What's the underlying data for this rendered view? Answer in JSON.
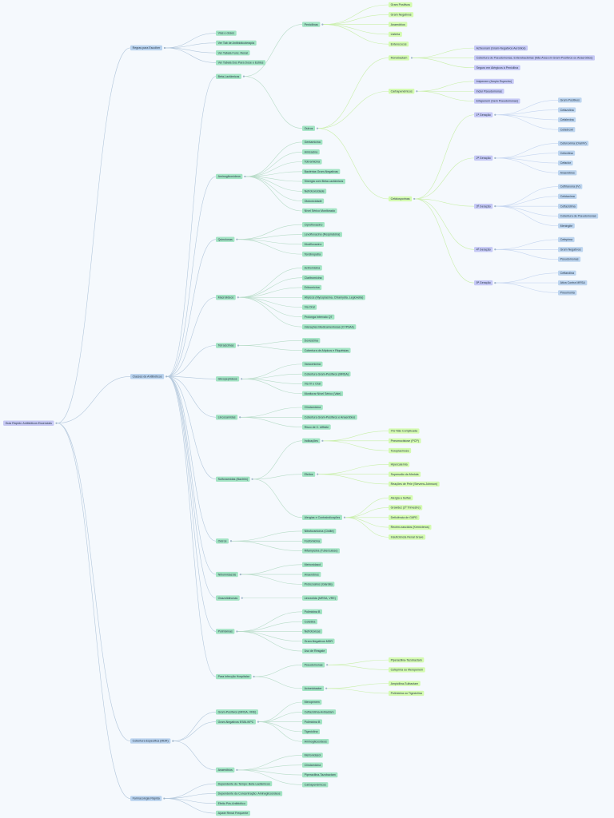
{
  "tree": {
    "label": "Guia Rápido: Antibióticos Essenciais",
    "children": [
      {
        "label": "Regras para Escolher",
        "children": [
          {
            "label": "Vias e doses"
          },
          {
            "label": "Ver Tab de Antibioticoterapia"
          },
          {
            "label": "Ver Tabela Func. Renal"
          },
          {
            "label": "Ver Tabela Dos Para Dose e Estilos"
          }
        ]
      },
      {
        "label": "Classes de Antibióticos",
        "children": [
          {
            "label": "Beta-Lactâmicos",
            "children": [
              {
                "label": "Penicilinas",
                "children": [
                  {
                    "label": "Gram Positivos"
                  },
                  {
                    "label": "Gram Negativos"
                  },
                  {
                    "label": "Anaeróbios"
                  },
                  {
                    "label": "Listeria"
                  },
                  {
                    "label": "Enterococos"
                  }
                ]
              },
              {
                "label": "Outros",
                "children": [
                  {
                    "label": "Monobactam",
                    "children": [
                      {
                        "label": "Aztreonam (Gram-Negativos Aeróbios)"
                      },
                      {
                        "label": "Cobertura de Pseudomonas, Enterobactérias (Não Atua em Gram-Positivos ou Anaeróbios)"
                      },
                      {
                        "label": "Seguro em Alérgicos à Penicilina"
                      }
                    ]
                  },
                  {
                    "label": "Carbapenêmicos",
                    "children": [
                      {
                        "label": "Imipenem (Amplo Espectro)"
                      },
                      {
                        "label": "Inclui Pseudomonas"
                      },
                      {
                        "label": "Ertapenem (Sem Pseudomonas)"
                      }
                    ]
                  },
                  {
                    "label": "Cefalosporinas",
                    "children": [
                      {
                        "label": "1ª Geração",
                        "children": [
                          {
                            "label": "Gram Positivos"
                          },
                          {
                            "label": "Cefazolina"
                          },
                          {
                            "label": "Cefalexina"
                          },
                          {
                            "label": "Cefadroxil"
                          }
                        ]
                      },
                      {
                        "label": "2ª Geração",
                        "children": [
                          {
                            "label": "Cefuroxima (Oral/IV)"
                          },
                          {
                            "label": "Cefoxitina"
                          },
                          {
                            "label": "Cefaclor"
                          },
                          {
                            "label": "Anaeróbios"
                          }
                        ]
                      },
                      {
                        "label": "3ª Geração",
                        "children": [
                          {
                            "label": "Ceftriaxona (IV)"
                          },
                          {
                            "label": "Cefotaxima"
                          },
                          {
                            "label": "Ceftazidima"
                          },
                          {
                            "label": "Cobertura de Pseudomonas"
                          },
                          {
                            "label": "Meningite"
                          }
                        ]
                      },
                      {
                        "label": "4ª Geração",
                        "children": [
                          {
                            "label": "Cefepima"
                          },
                          {
                            "label": "Gram Negativos"
                          },
                          {
                            "label": "Pseudomonas"
                          }
                        ]
                      },
                      {
                        "label": "5ª Geração",
                        "children": [
                          {
                            "label": "Ceftarolina"
                          },
                          {
                            "label": "Ativa Contra MRSA"
                          },
                          {
                            "label": "Pneumonia"
                          }
                        ]
                      }
                    ]
                  }
                ]
              }
            ]
          },
          {
            "label": "Aminoglicosídeos",
            "children": [
              {
                "label": "Gentamicina"
              },
              {
                "label": "Amicacina"
              },
              {
                "label": "Tobramicina"
              },
              {
                "label": "Bactérias Gram-Negativas"
              },
              {
                "label": "Sinergia com Beta-Lactâmicos"
              },
              {
                "label": "Nefrotoxicidade"
              },
              {
                "label": "Ototoxicidade"
              },
              {
                "label": "Nível Sérico Monitorado"
              }
            ]
          },
          {
            "label": "Quinolonas",
            "children": [
              {
                "label": "Ciprofloxacino"
              },
              {
                "label": "Levofloxacino (Respiratória)"
              },
              {
                "label": "Moxifloxacino"
              },
              {
                "label": "Tendinopatia"
              }
            ]
          },
          {
            "label": "Macrolídeos",
            "children": [
              {
                "label": "Azitromicina"
              },
              {
                "label": "Claritromicina"
              },
              {
                "label": "Eritromicina"
              },
              {
                "label": "Atípicos (Mycoplasma, Chlamydia, Legionella)"
              },
              {
                "label": "Via Oral"
              },
              {
                "label": "Prolonga Intervalo QT"
              },
              {
                "label": "Interações Medicamentosas (CYP3A4)"
              }
            ]
          },
          {
            "label": "Tetraciclinas",
            "children": [
              {
                "label": "Doxiciclina"
              },
              {
                "label": "Cobertura de Atípicos e Riquétsias"
              }
            ]
          },
          {
            "label": "Glicopeptídeos",
            "children": [
              {
                "label": "Vancomicina"
              },
              {
                "label": "Cobertura Gram-Positivos (MRSA)"
              },
              {
                "label": "Via IV e Oral"
              },
              {
                "label": "Monitorar Nível Sérico (Vale)"
              }
            ]
          },
          {
            "label": "Lincosamidas",
            "children": [
              {
                "label": "Clindamicina"
              },
              {
                "label": "Cobertura Gram-Positivos e Anaeróbios"
              },
              {
                "label": "Risco de C. difficile"
              }
            ]
          },
          {
            "label": "Sulfonamidas (Bactrim)",
            "children": [
              {
                "label": "Indicações",
                "children": [
                  {
                    "label": "ITU Não Complicada"
                  },
                  {
                    "label": "Pneumocistose (PCP)"
                  },
                  {
                    "label": "Toxoplasmose"
                  }
                ]
              },
              {
                "label": "Efeitos",
                "children": [
                  {
                    "label": "Hipercalemia"
                  },
                  {
                    "label": "Supressão da Medula"
                  },
                  {
                    "label": "Reações de Pele (Stevens-Johnson)"
                  }
                ]
              },
              {
                "label": "Alergias e Contraindicações",
                "children": [
                  {
                    "label": "Alergia a Sulfas"
                  },
                  {
                    "label": "Gravidez (3º Trimestre)"
                  },
                  {
                    "label": "Deficiência de G6PD"
                  },
                  {
                    "label": "Recém-nascidos (Kernicterus)"
                  },
                  {
                    "label": "Insuficiência Renal Grave"
                  }
                ]
              }
            ]
          },
          {
            "label": "Outros",
            "children": [
              {
                "label": "Nitrofurantoína (Cistite)"
              },
              {
                "label": "Fosfomicina"
              },
              {
                "label": "Rifampicina (Tuberculose)"
              }
            ]
          },
          {
            "label": "Nitroimidazóis",
            "children": [
              {
                "label": "Metronidazol"
              },
              {
                "label": "Anaeróbios"
              },
              {
                "label": "Protozoários (Giardia)"
              }
            ]
          },
          {
            "label": "Oxazolidinonas",
            "children": [
              {
                "label": "Linezolida (MRSA, VRE)"
              }
            ]
          },
          {
            "label": "Polimixinas",
            "children": [
              {
                "label": "Polimixina B"
              },
              {
                "label": "Colistina"
              },
              {
                "label": "Nefrotóxicas"
              },
              {
                "label": "Gram-Negativos MDR"
              },
              {
                "label": "Uso de Resgate"
              }
            ]
          },
          {
            "label": "Para Infecção Hospitalar",
            "children": [
              {
                "label": "Pseudomonas",
                "children": [
                  {
                    "label": "Piperacilina-Tazobactam"
                  },
                  {
                    "label": "Cefepima ou Meropenem"
                  }
                ]
              },
              {
                "label": "Acinetobacter",
                "children": [
                  {
                    "label": "Ampicilina-Sulbactam"
                  },
                  {
                    "label": "Polimixina ou Tigeciclina"
                  }
                ]
              }
            ]
          }
        ]
      },
      {
        "label": "Cobertura Específica (MDR)",
        "children": [
          {
            "label": "Gram-Positivos (MRSA, VRE)"
          },
          {
            "label": "Gram-Negativos ESBL/KPC",
            "children": [
              {
                "label": "Meropenem"
              },
              {
                "label": "Ceftazidima-Avibactam"
              },
              {
                "label": "Polimixina B"
              },
              {
                "label": "Tigeciclina"
              },
              {
                "label": "Aminoglicosídeos"
              }
            ]
          },
          {
            "label": "Anaeróbios",
            "children": [
              {
                "label": "Metronidazol"
              },
              {
                "label": "Clindamicina"
              },
              {
                "label": "Piperacilina-Tazobactam"
              },
              {
                "label": "Carbapenêmicos"
              }
            ]
          }
        ]
      },
      {
        "label": "Farmacologia Rápida",
        "children": [
          {
            "label": "Dependente do Tempo: Beta-Lactâmicos"
          },
          {
            "label": "Dependente da Concentração: Aminoglicosídeos"
          },
          {
            "label": "Efeito Pós-Antibiótico"
          },
          {
            "label": "Ajuste Renal Frequente"
          }
        ]
      }
    ]
  }
}
